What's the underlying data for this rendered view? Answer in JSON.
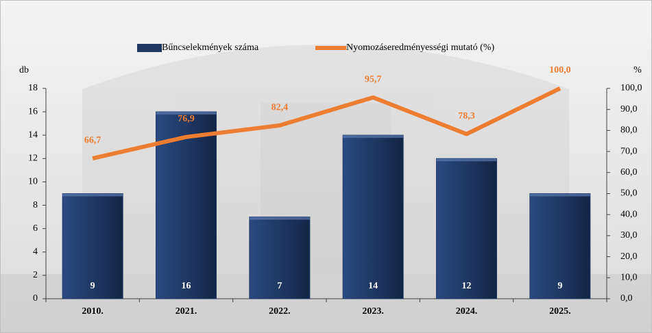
{
  "chart_data": {
    "type": "combo",
    "categories": [
      "2010.",
      "2021.",
      "2022.",
      "2023.",
      "2024.",
      "2025."
    ],
    "y_label": "db",
    "y2_label": "%",
    "ylim": [
      0,
      18
    ],
    "yticks": [
      0,
      2,
      4,
      6,
      8,
      10,
      12,
      14,
      16,
      18
    ],
    "y2lim": [
      0,
      100
    ],
    "y2ticks": [
      {
        "value": 0,
        "label": "0,0"
      },
      {
        "value": 10,
        "label": "10,0"
      },
      {
        "value": 20,
        "label": "20,0"
      },
      {
        "value": 30,
        "label": "30,0"
      },
      {
        "value": 40,
        "label": "40,0"
      },
      {
        "value": 50,
        "label": "50,0"
      },
      {
        "value": 60,
        "label": "60,0"
      },
      {
        "value": 70,
        "label": "70,0"
      },
      {
        "value": 80,
        "label": "80,0"
      },
      {
        "value": 90,
        "label": "90,0"
      },
      {
        "value": 100,
        "label": "100,0"
      }
    ],
    "series": [
      {
        "name": "Bűncselekmények száma",
        "type": "bar",
        "color": "#1f3864",
        "values": [
          9,
          16,
          7,
          14,
          12,
          9
        ]
      },
      {
        "name": "Nyomozáseredményességi mutató (%)",
        "type": "line",
        "axis": "y2",
        "color": "#ed7d31",
        "values": [
          66.7,
          76.9,
          82.4,
          95.7,
          78.3,
          100
        ],
        "value_labels": [
          "66,7",
          "76,9",
          "82,4",
          "95,7",
          "78,3",
          "100,0"
        ]
      }
    ]
  }
}
